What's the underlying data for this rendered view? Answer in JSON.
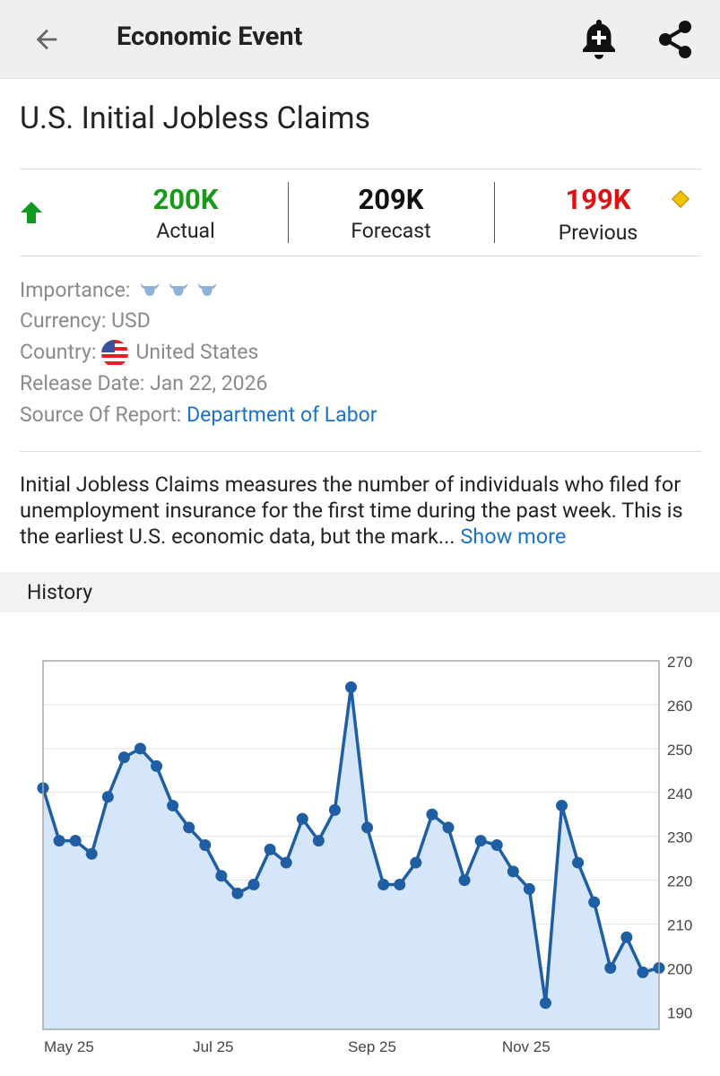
{
  "appbar": {
    "title": "Economic Event",
    "icons": [
      "back-arrow-icon",
      "add-alert-bell-icon",
      "share-icon"
    ]
  },
  "event": {
    "title": "U.S. Initial Jobless Claims"
  },
  "stats": {
    "actual": {
      "value": "200K",
      "label": "Actual",
      "color": "#1a9a1a"
    },
    "forecast": {
      "value": "209K",
      "label": "Forecast",
      "color": "#111111"
    },
    "previous": {
      "value": "199K",
      "label": "Previous",
      "color": "#e01010"
    },
    "trend_icon": "up-arrow-icon",
    "revised_icon": "diamond-icon"
  },
  "info": {
    "importance_label": "Importance:",
    "importance_level": 3,
    "currency_label": "Currency:",
    "currency_value": "USD",
    "country_label": "Country:",
    "country_value": "United States",
    "release_label": "Release Date:",
    "release_value": "Jan 22, 2026",
    "source_label": "Source Of Report:",
    "source_value": "Department of Labor"
  },
  "description": {
    "text": "Initial Jobless Claims measures the number of individuals who filed for unemployment insurance for the first time during the past week. This is the earliest U.S. economic data, but the mark...",
    "more": "Show more"
  },
  "history": {
    "label": "History"
  },
  "chart_data": {
    "type": "area",
    "title": "",
    "xlabel": "",
    "ylabel": "",
    "x_ticks": [
      "May 25",
      "Jul 25",
      "Sep 25",
      "Nov 25"
    ],
    "y_ticks": [
      190,
      200,
      210,
      220,
      230,
      240,
      250,
      260,
      270
    ],
    "ylim": [
      186,
      270
    ],
    "grid": true,
    "axis_position": "right",
    "line_color": "#1f5ea3",
    "fill_color": "#d6e6fa",
    "series": [
      {
        "values": [
          241,
          229,
          229,
          226,
          239,
          248,
          250,
          246,
          237,
          232,
          228,
          221,
          217,
          219,
          227,
          224,
          234,
          229,
          236,
          264,
          232,
          219,
          219,
          224,
          235,
          232,
          220,
          229,
          228,
          222,
          218,
          192,
          237,
          224,
          215,
          200,
          207,
          199,
          200
        ]
      }
    ]
  }
}
